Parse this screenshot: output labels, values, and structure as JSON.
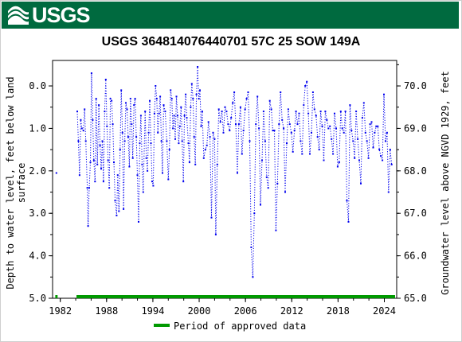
{
  "header": {
    "agency_logo_text": "USGS",
    "brand_color": "#006a3f"
  },
  "chart_data": {
    "type": "scatter",
    "title": "USGS 364814076440701 57C 25 SOW 149A",
    "ylabel_left": "Depth to water level, feet below land surface",
    "ylabel_left_lines": [
      "Depth to water level, feet below land",
      "surface"
    ],
    "ylabel_right": "Groundwater level above NGVD 1929, feet",
    "xlim": [
      1981.0,
      2025.6
    ],
    "ylim_left": [
      5.0,
      -0.6
    ],
    "ylim_right": [
      65.0,
      70.6
    ],
    "y_left_ticks": [
      0.0,
      1.0,
      2.0,
      3.0,
      4.0,
      5.0
    ],
    "y_left_tick_labels": [
      "0.0",
      "1.0",
      "2.0",
      "3.0",
      "4.0",
      "5.0"
    ],
    "y_right_ticks": [
      65.0,
      66.0,
      67.0,
      68.0,
      69.0,
      70.0
    ],
    "y_right_tick_labels": [
      "65.0",
      "66.0",
      "67.0",
      "68.0",
      "69.0",
      "70.0"
    ],
    "x_ticks": [
      1982,
      1988,
      1994,
      2000,
      2006,
      2012,
      2018,
      2024
    ],
    "x_tick_labels": [
      "1982",
      "1988",
      "1994",
      "2000",
      "2006",
      "2012",
      "2018",
      "2024"
    ],
    "grid": false,
    "legend": {
      "placement": "bottom",
      "entries": [
        {
          "label": "Period of approved data",
          "color": "#009900"
        }
      ]
    },
    "series": [
      {
        "marker_color": "#0000ee",
        "style": "dotted",
        "points": [
          [
            1981.5,
            2.05
          ],
          [
            1984.2,
            0.6
          ],
          [
            1984.35,
            1.3
          ],
          [
            1984.5,
            2.1
          ],
          [
            1984.65,
            0.8
          ],
          [
            1984.8,
            1.0
          ],
          [
            1985.0,
            1.05
          ],
          [
            1985.15,
            0.55
          ],
          [
            1985.3,
            1.3
          ],
          [
            1985.5,
            2.4
          ],
          [
            1985.6,
            3.3
          ],
          [
            1985.75,
            2.4
          ],
          [
            1985.9,
            1.8
          ],
          [
            1986.05,
            -0.3
          ],
          [
            1986.2,
            0.8
          ],
          [
            1986.35,
            1.75
          ],
          [
            1986.5,
            2.25
          ],
          [
            1986.65,
            0.3
          ],
          [
            1986.8,
            1.85
          ],
          [
            1987.0,
            0.45
          ],
          [
            1987.15,
            1.4
          ],
          [
            1987.3,
            1.95
          ],
          [
            1987.45,
            1.3
          ],
          [
            1987.6,
            2.25
          ],
          [
            1987.75,
            0.6
          ],
          [
            1987.9,
            -0.15
          ],
          [
            1988.05,
            0.95
          ],
          [
            1988.2,
            1.75
          ],
          [
            1988.35,
            2.4
          ],
          [
            1988.5,
            0.3
          ],
          [
            1988.65,
            0.35
          ],
          [
            1988.8,
            0.9
          ],
          [
            1988.95,
            1.8
          ],
          [
            1989.1,
            2.7
          ],
          [
            1989.3,
            3.05
          ],
          [
            1989.45,
            2.1
          ],
          [
            1989.6,
            2.95
          ],
          [
            1989.75,
            1.5
          ],
          [
            1989.9,
            0.1
          ],
          [
            1990.05,
            1.1
          ],
          [
            1990.2,
            2.9
          ],
          [
            1990.35,
            1.3
          ],
          [
            1990.5,
            0.4
          ],
          [
            1990.65,
            0.55
          ],
          [
            1990.8,
            1.2
          ],
          [
            1990.95,
            1.9
          ],
          [
            1991.1,
            0.3
          ],
          [
            1991.25,
            0.9
          ],
          [
            1991.4,
            1.7
          ],
          [
            1991.55,
            0.45
          ],
          [
            1991.7,
            0.3
          ],
          [
            1991.85,
            1.2
          ],
          [
            1992.0,
            2.1
          ],
          [
            1992.15,
            3.2
          ],
          [
            1992.3,
            1.35
          ],
          [
            1992.45,
            0.7
          ],
          [
            1992.6,
            1.85
          ],
          [
            1992.75,
            2.5
          ],
          [
            1993.0,
            0.6
          ],
          [
            1993.15,
            1.7
          ],
          [
            1993.3,
            2.0
          ],
          [
            1993.45,
            1.1
          ],
          [
            1993.6,
            0.35
          ],
          [
            1993.75,
            1.35
          ],
          [
            1993.9,
            2.25
          ],
          [
            1994.05,
            2.35
          ],
          [
            1994.2,
            0.65
          ],
          [
            1994.35,
            0.0
          ],
          [
            1994.5,
            0.3
          ],
          [
            1994.65,
            1.1
          ],
          [
            1994.8,
            0.65
          ],
          [
            1994.95,
            0.25
          ],
          [
            1995.1,
            1.3
          ],
          [
            1995.25,
            2.05
          ],
          [
            1995.4,
            0.45
          ],
          [
            1995.6,
            0.6
          ],
          [
            1995.8,
            1.3
          ],
          [
            1996.0,
            2.2
          ],
          [
            1996.15,
            1.5
          ],
          [
            1996.3,
            0.1
          ],
          [
            1996.45,
            0.3
          ],
          [
            1996.6,
            1.0
          ],
          [
            1996.75,
            0.7
          ],
          [
            1996.9,
            1.25
          ],
          [
            1997.05,
            0.25
          ],
          [
            1997.2,
            0.7
          ],
          [
            1997.35,
            1.35
          ],
          [
            1997.5,
            0.95
          ],
          [
            1997.65,
            0.5
          ],
          [
            1997.8,
            1.3
          ],
          [
            1997.95,
            2.25
          ],
          [
            1998.1,
            0.7
          ],
          [
            1998.25,
            0.2
          ],
          [
            1998.4,
            0.75
          ],
          [
            1998.6,
            1.35
          ],
          [
            1998.75,
            1.8
          ],
          [
            1998.9,
            0.5
          ],
          [
            1999.05,
            -0.05
          ],
          [
            1999.2,
            0.3
          ],
          [
            1999.35,
            1.2
          ],
          [
            1999.5,
            1.85
          ],
          [
            1999.65,
            0.2
          ],
          [
            1999.8,
            -0.45
          ],
          [
            1999.95,
            0.3
          ],
          [
            2000.1,
            0.1
          ],
          [
            2000.25,
            0.95
          ],
          [
            2000.4,
            0.6
          ],
          [
            2000.6,
            1.7
          ],
          [
            2000.8,
            1.5
          ],
          [
            2001.0,
            1.4
          ],
          [
            2001.2,
            0.85
          ],
          [
            2001.4,
            1.2
          ],
          [
            2001.6,
            3.1
          ],
          [
            2001.8,
            1.1
          ],
          [
            2002.0,
            1.25
          ],
          [
            2002.15,
            3.5
          ],
          [
            2002.35,
            1.85
          ],
          [
            2002.55,
            0.55
          ],
          [
            2002.75,
            0.85
          ],
          [
            2002.95,
            0.6
          ],
          [
            2003.15,
            1.1
          ],
          [
            2003.35,
            0.5
          ],
          [
            2003.55,
            0.6
          ],
          [
            2003.75,
            0.9
          ],
          [
            2003.95,
            1.05
          ],
          [
            2004.15,
            0.75
          ],
          [
            2004.35,
            0.4
          ],
          [
            2004.55,
            0.15
          ],
          [
            2004.75,
            0.9
          ],
          [
            2004.95,
            2.05
          ],
          [
            2005.15,
            0.9
          ],
          [
            2005.35,
            0.5
          ],
          [
            2005.55,
            1.6
          ],
          [
            2005.75,
            1.05
          ],
          [
            2005.95,
            0.55
          ],
          [
            2006.15,
            0.3
          ],
          [
            2006.35,
            0.15
          ],
          [
            2006.55,
            1.3
          ],
          [
            2006.75,
            3.8
          ],
          [
            2006.95,
            4.5
          ],
          [
            2007.15,
            3.0
          ],
          [
            2007.35,
            0.9
          ],
          [
            2007.55,
            0.25
          ],
          [
            2007.75,
            1.0
          ],
          [
            2007.95,
            2.8
          ],
          [
            2008.15,
            1.75
          ],
          [
            2008.35,
            0.6
          ],
          [
            2008.55,
            1.3
          ],
          [
            2008.75,
            2.15
          ],
          [
            2008.95,
            2.4
          ],
          [
            2009.15,
            0.35
          ],
          [
            2009.35,
            0.55
          ],
          [
            2009.55,
            1.05
          ],
          [
            2009.75,
            1.05
          ],
          [
            2009.95,
            3.4
          ],
          [
            2010.15,
            2.3
          ],
          [
            2010.35,
            0.9
          ],
          [
            2010.55,
            0.15
          ],
          [
            2010.75,
            0.8
          ],
          [
            2010.95,
            1.0
          ],
          [
            2011.15,
            2.5
          ],
          [
            2011.35,
            1.35
          ],
          [
            2011.55,
            0.55
          ],
          [
            2011.75,
            0.9
          ],
          [
            2011.95,
            1.1
          ],
          [
            2012.15,
            1.55
          ],
          [
            2012.35,
            1.05
          ],
          [
            2012.55,
            0.6
          ],
          [
            2012.75,
            0.9
          ],
          [
            2012.95,
            0.65
          ],
          [
            2013.15,
            1.3
          ],
          [
            2013.35,
            1.6
          ],
          [
            2013.55,
            0.45
          ],
          [
            2013.75,
            0.0
          ],
          [
            2013.95,
            -0.1
          ],
          [
            2014.15,
            0.65
          ],
          [
            2014.35,
            1.6
          ],
          [
            2014.55,
            1.1
          ],
          [
            2014.75,
            0.15
          ],
          [
            2014.95,
            0.55
          ],
          [
            2015.15,
            0.7
          ],
          [
            2015.35,
            1.2
          ],
          [
            2015.55,
            1.5
          ],
          [
            2015.75,
            0.6
          ],
          [
            2015.95,
            0.95
          ],
          [
            2016.15,
            1.75
          ],
          [
            2016.35,
            0.6
          ],
          [
            2016.55,
            0.8
          ],
          [
            2016.75,
            1.0
          ],
          [
            2016.95,
            0.95
          ],
          [
            2017.15,
            1.25
          ],
          [
            2017.35,
            1.6
          ],
          [
            2017.55,
            0.65
          ],
          [
            2017.75,
            1.0
          ],
          [
            2017.95,
            1.9
          ],
          [
            2018.15,
            1.8
          ],
          [
            2018.35,
            0.6
          ],
          [
            2018.55,
            1.0
          ],
          [
            2018.75,
            1.1
          ],
          [
            2018.95,
            0.6
          ],
          [
            2019.15,
            2.7
          ],
          [
            2019.35,
            3.2
          ],
          [
            2019.55,
            0.45
          ],
          [
            2019.75,
            1.05
          ],
          [
            2019.95,
            1.3
          ],
          [
            2020.15,
            1.7
          ],
          [
            2020.35,
            0.6
          ],
          [
            2020.55,
            1.25
          ],
          [
            2020.75,
            1.75
          ],
          [
            2020.95,
            2.3
          ],
          [
            2021.15,
            0.75
          ],
          [
            2021.35,
            0.4
          ],
          [
            2021.55,
            1.1
          ],
          [
            2021.75,
            1.3
          ],
          [
            2021.95,
            1.7
          ],
          [
            2022.15,
            0.9
          ],
          [
            2022.35,
            0.85
          ],
          [
            2022.55,
            1.45
          ],
          [
            2022.75,
            1.1
          ],
          [
            2022.95,
            0.95
          ],
          [
            2023.15,
            0.95
          ],
          [
            2023.35,
            1.5
          ],
          [
            2023.55,
            1.65
          ],
          [
            2023.75,
            1.75
          ],
          [
            2023.95,
            0.2
          ],
          [
            2024.15,
            1.3
          ],
          [
            2024.35,
            1.1
          ],
          [
            2024.55,
            2.5
          ],
          [
            2024.75,
            1.5
          ],
          [
            2024.95,
            1.85
          ]
        ]
      }
    ],
    "approved_periods": [
      [
        1981.35,
        1981.65
      ],
      [
        1984.1,
        2025.4
      ]
    ]
  }
}
